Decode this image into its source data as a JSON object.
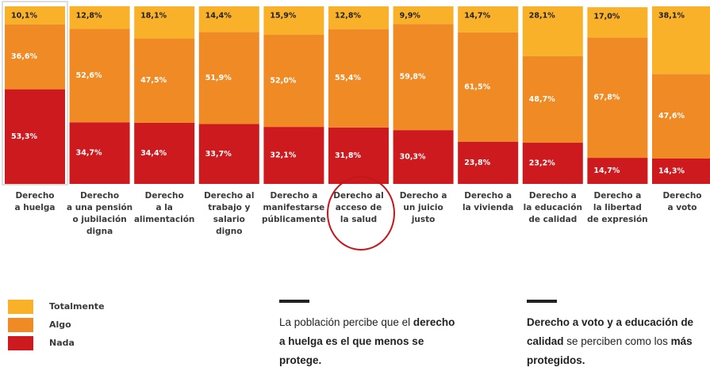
{
  "chart_data": {
    "type": "stacked_bar",
    "categories": [
      "Derecho\na huelga",
      "Derecho\na una pensión\no jubilación\ndigna",
      "Derecho\na la\nalimentación",
      "Derecho al\ntrabajo y\nsalario\ndigno",
      "Derecho a\nmanifestarse\npúblicamente",
      "Derecho al\nacceso de\nla salud",
      "Derecho a\nun juicio\njusto",
      "Derecho a\nla vivienda",
      "Derecho a\nla educación\nde calidad",
      "Derecho a\nla libertad\nde expresión",
      "Derecho\na voto"
    ],
    "ylim": [
      0,
      100
    ],
    "series": [
      {
        "name": "Nada",
        "color": "#cc1a1f",
        "values": [
          53.3,
          34.7,
          34.4,
          33.7,
          32.1,
          31.8,
          30.3,
          23.8,
          23.2,
          14.7,
          14.3
        ],
        "value_labels": [
          "53,3%",
          "34,7%",
          "34,4%",
          "33,7%",
          "32,1%",
          "31,8%",
          "30,3%",
          "23,8%",
          "23,2%",
          "14,7%",
          "14,3%"
        ]
      },
      {
        "name": "Algo",
        "color": "#f08a24",
        "values": [
          36.6,
          52.6,
          47.5,
          51.9,
          52.0,
          55.4,
          59.8,
          61.5,
          48.7,
          67.8,
          47.6
        ],
        "value_labels": [
          "36,6%",
          "52,6%",
          "47,5%",
          "51,9%",
          "52,0%",
          "55,4%",
          "59,8%",
          "61,5%",
          "48,7%",
          "67,8%",
          "47,6%"
        ]
      },
      {
        "name": "Totalmente",
        "color": "#f9b12a",
        "values": [
          10.1,
          12.8,
          18.1,
          14.4,
          15.9,
          12.8,
          9.9,
          14.7,
          28.1,
          17.0,
          38.1
        ],
        "value_labels": [
          "10,1%",
          "12,8%",
          "18,1%",
          "14,4%",
          "15,9%",
          "12,8%",
          "9,9%",
          "14,7%",
          "28,1%",
          "17,0%",
          "38,1%"
        ]
      }
    ],
    "annotations": [
      {
        "parts": [
          {
            "text": "La población percibe que el "
          },
          {
            "text": "derecho a huelga es el que menos se protege.",
            "bold": true
          }
        ]
      },
      {
        "parts": [
          {
            "text": "Derecho a voto y a educación de calidad",
            "bold": true
          },
          {
            "text": " se perciben como los "
          },
          {
            "text": "más protegidos.",
            "bold": true
          }
        ]
      }
    ]
  }
}
